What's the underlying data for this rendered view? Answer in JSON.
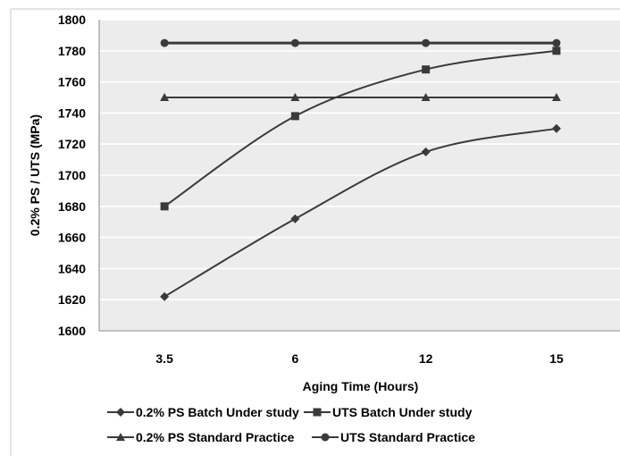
{
  "chart_data": {
    "type": "line",
    "categories": [
      "3.5",
      "6",
      "12",
      "15"
    ],
    "xlabel": "Aging Time (Hours)",
    "ylabel": "0.2% PS / UTS (MPa)",
    "ylim": [
      1600,
      1800
    ],
    "yticks": [
      1600,
      1620,
      1640,
      1660,
      1680,
      1700,
      1720,
      1740,
      1760,
      1780,
      1800
    ],
    "grid": true,
    "legend_position": "bottom",
    "colors": {
      "plot_bg": "#ececec",
      "line": "#3a3a3a",
      "grid": "#ffffff"
    },
    "series": [
      {
        "name": "0.2% PS Batch Under study",
        "marker": "diamond",
        "smooth": true,
        "values": [
          1622,
          1672,
          1715,
          1730
        ]
      },
      {
        "name": "UTS Batch Under study",
        "marker": "square",
        "smooth": true,
        "values": [
          1680,
          1738,
          1768,
          1780
        ]
      },
      {
        "name": "0.2% PS Standard Practice",
        "marker": "triangle",
        "smooth": false,
        "values": [
          1750,
          1750,
          1750,
          1750
        ]
      },
      {
        "name": "UTS Standard Practice",
        "marker": "circle",
        "smooth": false,
        "values": [
          1785,
          1785,
          1785,
          1785
        ]
      }
    ]
  }
}
